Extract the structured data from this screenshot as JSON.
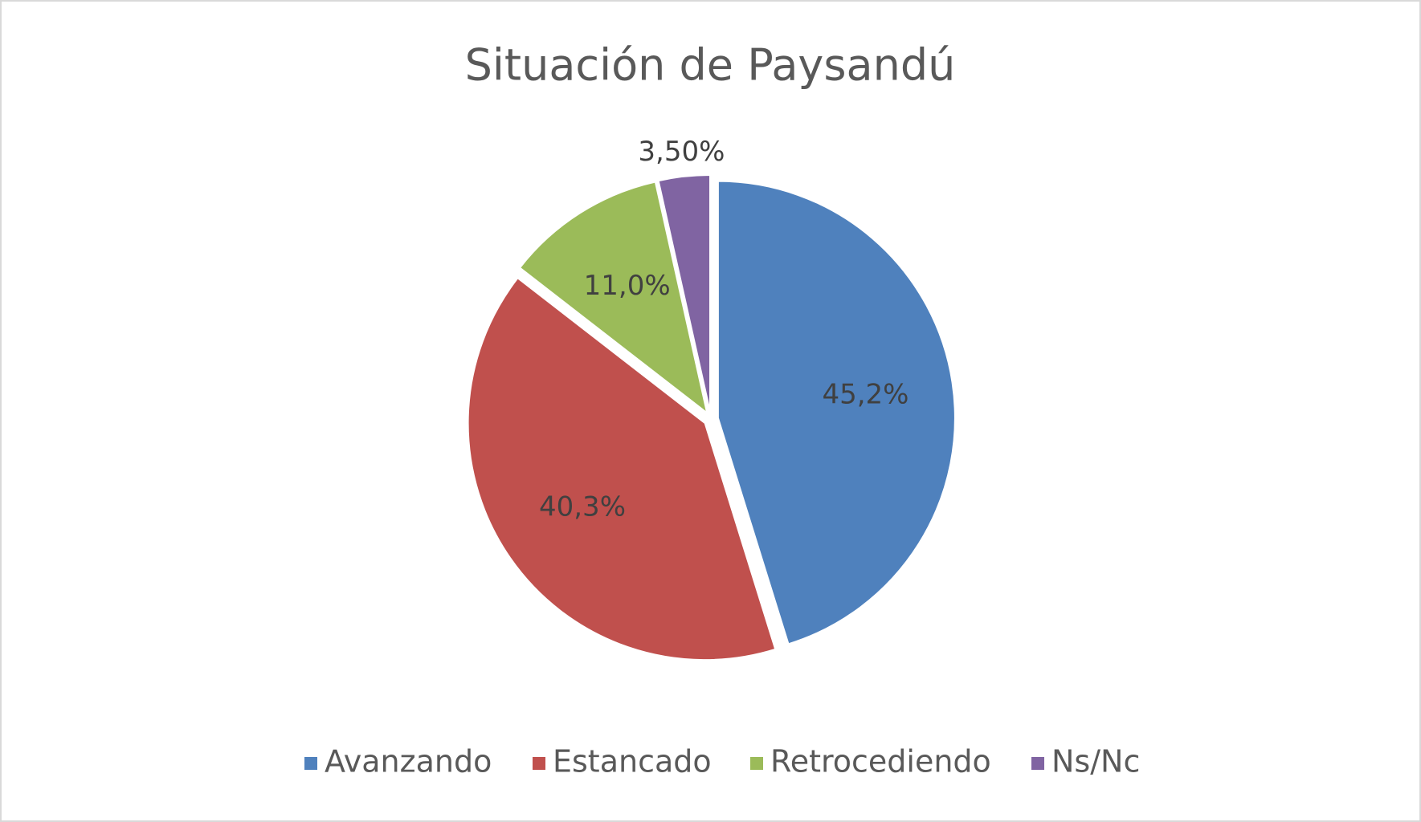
{
  "chart_data": {
    "type": "pie",
    "title": "Situación de Paysandú",
    "categories": [
      "Avanzando",
      "Estancado",
      "Retrocediendo",
      "Ns/Nc"
    ],
    "values": [
      45.2,
      40.3,
      11.0,
      3.5
    ],
    "value_labels": [
      "45,2%",
      "40,3%",
      "11,0%",
      "3,50%"
    ],
    "colors": [
      "#4f81bd",
      "#c0504d",
      "#9bbb59",
      "#8064a2"
    ],
    "legend": "bottom"
  }
}
